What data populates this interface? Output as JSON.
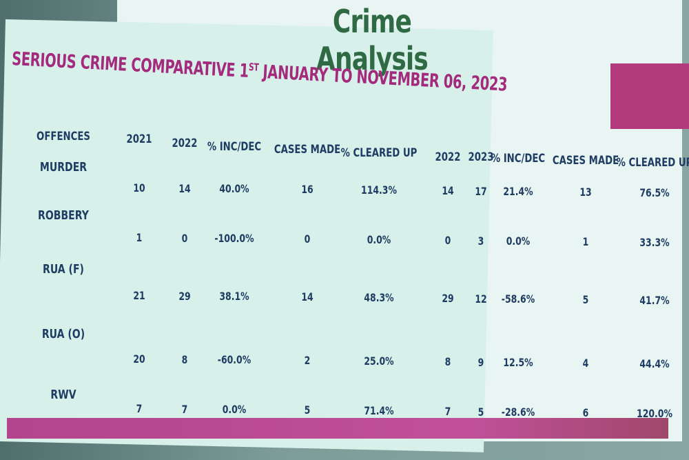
{
  "title": "Crime Analysis",
  "subtitle": [
    "SERIOUS CRIME COMPARATIVE 1",
    "ST",
    " JANUARY TO NOVEMBER 06, 2023"
  ],
  "table": {
    "header": [
      "OFFENCES",
      "2021",
      "2022",
      "% INC/DEC",
      "CASES MADE",
      "% CLEARED UP",
      "2022",
      "2023",
      "% INC/DEC",
      "CASES MADE",
      "% CLEARED UP"
    ],
    "rows": [
      [
        "MURDER",
        "10",
        "14",
        "40.0%",
        "16",
        "114.3%",
        "14",
        "17",
        "21.4%",
        "13",
        "76.5%"
      ],
      [
        "ROBBERY",
        "1",
        "0",
        "-100.0%",
        "0",
        "0.0%",
        "0",
        "3",
        "0.0%",
        "1",
        "33.3%"
      ],
      [
        "RUA (F)",
        "21",
        "29",
        "38.1%",
        "14",
        "48.3%",
        "29",
        "12",
        "-58.6%",
        "5",
        "41.7%"
      ],
      [
        "RUA (O)",
        "20",
        "8",
        "-60.0%",
        "2",
        "25.0%",
        "8",
        "9",
        "12.5%",
        "4",
        "44.4%"
      ],
      [
        "RWV",
        "7",
        "7",
        "0.0%",
        "5",
        "71.4%",
        "7",
        "5",
        "-28.6%",
        "6",
        "120.0%"
      ]
    ]
  }
}
